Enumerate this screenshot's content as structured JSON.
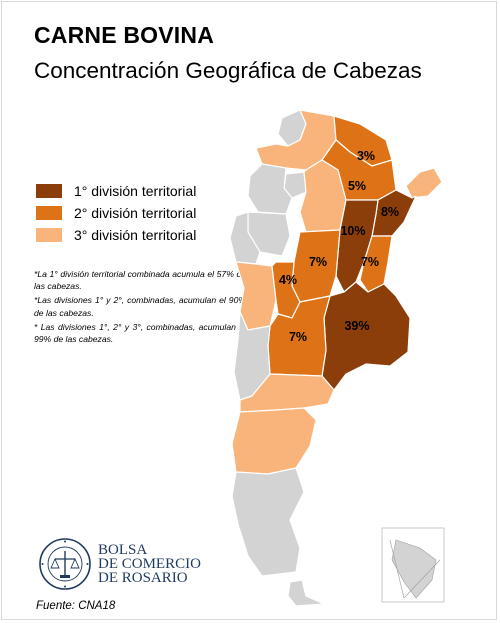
{
  "header": {
    "title": "CARNE BOVINA",
    "subtitle": "Concentración Geográfica de Cabezas"
  },
  "legend": {
    "items": [
      {
        "label": "1° división territorial",
        "color": "#8b3d0a"
      },
      {
        "label": "2° división territorial",
        "color": "#dd7316"
      },
      {
        "label": "3° división territorial",
        "color": "#f8b47a"
      }
    ]
  },
  "notes": [
    "*La 1° división territorial combinada acumula el 57% de las cabezas.",
    "*Las divisiones 1° y 2°, combinadas, acumulan el 90% de las cabezas.",
    "* Las divisiones 1°, 2° y 3°, combinadas, acumulan el 99% de las cabezas."
  ],
  "logo": {
    "line1": "BOLSA",
    "line2": "DE COMERCIO",
    "line3": "DE ROSARIO",
    "seal_ring_text": "BOLSA DE COMERCIO DE ROSARIO"
  },
  "source": "Fuente: CNA18",
  "map": {
    "colors": {
      "tier1": "#8b3d0a",
      "tier2": "#dd7316",
      "tier3": "#f8b47a",
      "other": "#d3d3d3",
      "border": "#ffffff"
    },
    "provinces": [
      {
        "name": "Buenos Aires",
        "tier": 1,
        "share": "39%"
      },
      {
        "name": "Santa Fe",
        "tier": 1,
        "share": "10%"
      },
      {
        "name": "Corrientes",
        "tier": 1,
        "share": "8%"
      },
      {
        "name": "Entre Ríos",
        "tier": 2,
        "share": "7%"
      },
      {
        "name": "Córdoba",
        "tier": 2,
        "share": "7%"
      },
      {
        "name": "La Pampa",
        "tier": 2,
        "share": "7%"
      },
      {
        "name": "Chaco",
        "tier": 2,
        "share": "5%"
      },
      {
        "name": "San Luis",
        "tier": 2,
        "share": "4%"
      },
      {
        "name": "Formosa",
        "tier": 2,
        "share": "3%"
      },
      {
        "name": "Salta",
        "tier": 3
      },
      {
        "name": "Santiago del Estero",
        "tier": 3
      },
      {
        "name": "Misiones",
        "tier": 3
      },
      {
        "name": "Mendoza",
        "tier": 3
      },
      {
        "name": "Río Negro",
        "tier": 3
      },
      {
        "name": "Chubut",
        "tier": 3
      },
      {
        "name": "Jujuy",
        "tier": 0
      },
      {
        "name": "Tucumán",
        "tier": 0
      },
      {
        "name": "Catamarca",
        "tier": 0
      },
      {
        "name": "La Rioja",
        "tier": 0
      },
      {
        "name": "San Juan",
        "tier": 0
      },
      {
        "name": "Neuquén",
        "tier": 0
      },
      {
        "name": "Santa Cruz",
        "tier": 0
      },
      {
        "name": "Tierra del Fuego",
        "tier": 0
      }
    ]
  }
}
